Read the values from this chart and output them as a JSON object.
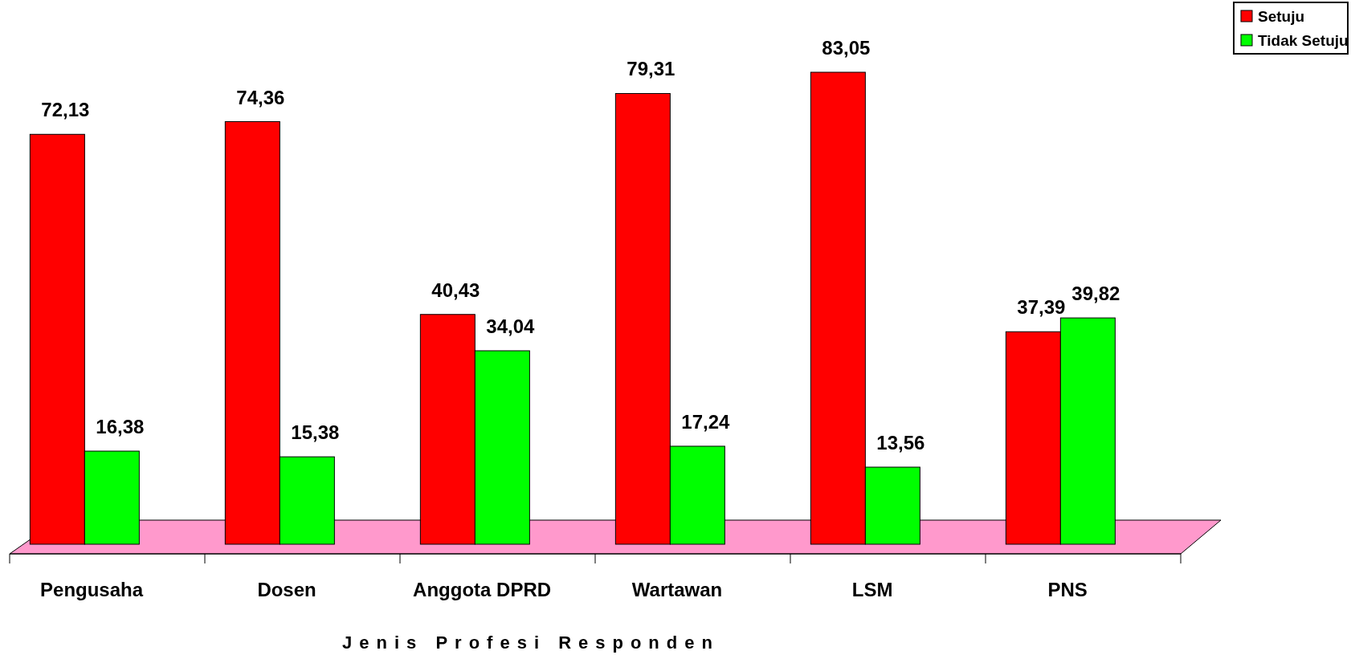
{
  "chart_data": {
    "type": "bar",
    "xlabel": "Jenis Profesi Responden",
    "categories": [
      "Pengusaha",
      "Dosen",
      "Anggota DPRD",
      "Wartawan",
      "LSM",
      "PNS"
    ],
    "series": [
      {
        "name": "Setuju",
        "color": "#ff0000",
        "values": [
          72.13,
          74.36,
          40.43,
          79.31,
          83.05,
          37.39
        ],
        "value_labels": [
          "72,13",
          "74,36",
          "40,43",
          "79,31",
          "83,05",
          "37,39"
        ]
      },
      {
        "name": "Tidak Setuju",
        "color": "#00ff00",
        "values": [
          16.38,
          15.38,
          34.04,
          17.24,
          13.56,
          39.82
        ],
        "value_labels": [
          "16,38",
          "15,38",
          "34,04",
          "17,24",
          "13,56",
          "39,82"
        ]
      }
    ],
    "legend": "top right"
  }
}
